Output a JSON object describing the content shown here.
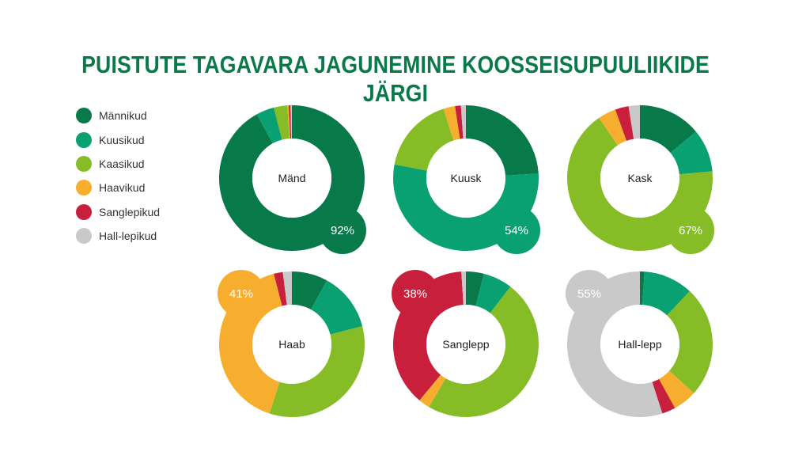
{
  "title": "PUISTUTE TAGAVARA JAGUNEMINE KOOSSEISUPUULIIKIDE JÄRGI",
  "legend": [
    {
      "label": "Männikud",
      "color": "#087a4a"
    },
    {
      "label": "Kuusikud",
      "color": "#0aa172"
    },
    {
      "label": "Kaasikud",
      "color": "#86bd27"
    },
    {
      "label": "Haavikud",
      "color": "#f7ae2e"
    },
    {
      "label": "Sanglepikud",
      "color": "#c8203c"
    },
    {
      "label": "Hall-lepikud",
      "color": "#c9c9c9"
    }
  ],
  "chart_data": {
    "type": "pie",
    "variant": "donut",
    "title": "PUISTUTE TAGAVARA JAGUNEMINE KOOSSEISUPUULIIKIDE JÄRGI",
    "series_names": [
      "Männikud",
      "Kuusikud",
      "Kaasikud",
      "Haavikud",
      "Sanglepikud",
      "Hall-lepikud"
    ],
    "colors": [
      "#087a4a",
      "#0aa172",
      "#86bd27",
      "#f7ae2e",
      "#c8203c",
      "#c9c9c9"
    ],
    "charts": [
      {
        "label": "Mänd",
        "highlight_index": 0,
        "highlight_pct": "92%",
        "badge_position": "bottom-right",
        "values": [
          92,
          4,
          3,
          0.3,
          0.4,
          0.3
        ]
      },
      {
        "label": "Kuusk",
        "highlight_index": 1,
        "highlight_pct": "54%",
        "badge_position": "bottom-right",
        "values": [
          24,
          54,
          17,
          2.6,
          1.3,
          1.1
        ]
      },
      {
        "label": "Kask",
        "highlight_index": 2,
        "highlight_pct": "67%",
        "badge_position": "bottom-right",
        "values": [
          14,
          9.5,
          67,
          4,
          3,
          2.5
        ]
      },
      {
        "label": "Haab",
        "highlight_index": 3,
        "highlight_pct": "41%",
        "badge_position": "top-left",
        "values": [
          8,
          13,
          34,
          41,
          2,
          2
        ]
      },
      {
        "label": "Sanglepp",
        "highlight_index": 4,
        "highlight_pct": "38%",
        "badge_position": "top-left",
        "values": [
          4,
          6.5,
          48,
          2.5,
          38,
          1
        ]
      },
      {
        "label": "Hall-lepp",
        "highlight_index": 5,
        "highlight_pct": "55%",
        "badge_position": "top-left",
        "values": [
          1,
          11,
          24.7,
          5.3,
          3,
          55
        ]
      }
    ]
  }
}
